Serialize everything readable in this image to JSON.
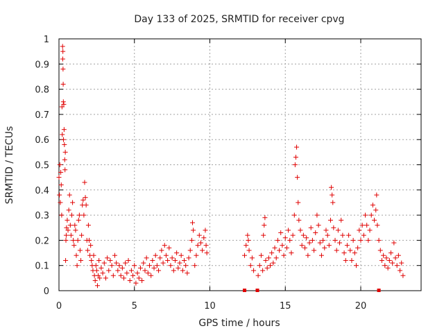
{
  "chart_data": {
    "type": "scatter",
    "title": "Day 133 of 2025, SRMTID for receiver cpvg",
    "xlabel": "GPS time / hours",
    "ylabel": "SRMTID / TECUs",
    "xlim": [
      0,
      24
    ],
    "ylim": [
      0,
      1
    ],
    "x_ticks": [
      0,
      5,
      10,
      15,
      20
    ],
    "y_ticks": [
      0,
      0.1,
      0.2,
      0.3,
      0.4,
      0.5,
      0.6,
      0.7,
      0.8,
      0.9,
      1
    ],
    "x_tick_labels": [
      "0",
      "5",
      "10",
      "15",
      "20"
    ],
    "y_tick_labels": [
      "0",
      "0.1",
      "0.2",
      "0.3",
      "0.4",
      "0.5",
      "0.6",
      "0.7",
      "0.8",
      "0.9",
      "1"
    ],
    "grid": true,
    "series_color": "#e00000",
    "gap_markers_x": [
      12.3,
      13.15,
      21.2
    ],
    "series": [
      {
        "name": "SRMTID",
        "points": [
          [
            0.0,
            0.45
          ],
          [
            0.03,
            0.38
          ],
          [
            0.06,
            0.5
          ],
          [
            0.09,
            0.35
          ],
          [
            0.12,
            0.47
          ],
          [
            0.15,
            0.42
          ],
          [
            0.18,
            0.3
          ],
          [
            0.2,
            0.73
          ],
          [
            0.22,
            0.62
          ],
          [
            0.24,
            0.97
          ],
          [
            0.25,
            0.92
          ],
          [
            0.26,
            0.95
          ],
          [
            0.27,
            0.88
          ],
          [
            0.28,
            0.82
          ],
          [
            0.29,
            0.75
          ],
          [
            0.3,
            0.6
          ],
          [
            0.32,
            0.74
          ],
          [
            0.34,
            0.64
          ],
          [
            0.36,
            0.58
          ],
          [
            0.38,
            0.52
          ],
          [
            0.4,
            0.48
          ],
          [
            0.42,
            0.55
          ],
          [
            0.44,
            0.12
          ],
          [
            0.46,
            0.2
          ],
          [
            0.48,
            0.22
          ],
          [
            0.5,
            0.25
          ],
          [
            0.55,
            0.28
          ],
          [
            0.6,
            0.24
          ],
          [
            0.65,
            0.32
          ],
          [
            0.7,
            0.38
          ],
          [
            0.75,
            0.26
          ],
          [
            0.8,
            0.22
          ],
          [
            0.85,
            0.3
          ],
          [
            0.9,
            0.35
          ],
          [
            0.95,
            0.2
          ],
          [
            1.0,
            0.18
          ],
          [
            1.05,
            0.26
          ],
          [
            1.1,
            0.24
          ],
          [
            1.15,
            0.14
          ],
          [
            1.2,
            0.1
          ],
          [
            1.25,
            0.2
          ],
          [
            1.3,
            0.28
          ],
          [
            1.35,
            0.3
          ],
          [
            1.4,
            0.16
          ],
          [
            1.45,
            0.12
          ],
          [
            1.5,
            0.22
          ],
          [
            1.55,
            0.34
          ],
          [
            1.6,
            0.36
          ],
          [
            1.65,
            0.3
          ],
          [
            1.7,
            0.43
          ],
          [
            1.75,
            0.37
          ],
          [
            1.8,
            0.34
          ],
          [
            1.85,
            0.2
          ],
          [
            1.9,
            0.16
          ],
          [
            1.95,
            0.26
          ],
          [
            2.0,
            0.2
          ],
          [
            2.05,
            0.14
          ],
          [
            2.1,
            0.18
          ],
          [
            2.15,
            0.12
          ],
          [
            2.2,
            0.1
          ],
          [
            2.25,
            0.08
          ],
          [
            2.3,
            0.14
          ],
          [
            2.35,
            0.06
          ],
          [
            2.4,
            0.04
          ],
          [
            2.45,
            0.1
          ],
          [
            2.5,
            0.08
          ],
          [
            2.55,
            0.02
          ],
          [
            2.6,
            0.06
          ],
          [
            2.65,
            0.12
          ],
          [
            2.7,
            0.05
          ],
          [
            2.8,
            0.09
          ],
          [
            2.9,
            0.07
          ],
          [
            3.0,
            0.11
          ],
          [
            3.1,
            0.05
          ],
          [
            3.2,
            0.13
          ],
          [
            3.3,
            0.08
          ],
          [
            3.4,
            0.12
          ],
          [
            3.5,
            0.1
          ],
          [
            3.6,
            0.06
          ],
          [
            3.7,
            0.14
          ],
          [
            3.8,
            0.11
          ],
          [
            3.9,
            0.08
          ],
          [
            4.0,
            0.1
          ],
          [
            4.1,
            0.06
          ],
          [
            4.2,
            0.09
          ],
          [
            4.3,
            0.05
          ],
          [
            4.4,
            0.11
          ],
          [
            4.5,
            0.07
          ],
          [
            4.6,
            0.12
          ],
          [
            4.7,
            0.04
          ],
          [
            4.8,
            0.08
          ],
          [
            4.9,
            0.06
          ],
          [
            5.0,
            0.1
          ],
          [
            5.1,
            0.03
          ],
          [
            5.2,
            0.07
          ],
          [
            5.3,
            0.05
          ],
          [
            5.4,
            0.09
          ],
          [
            5.5,
            0.04
          ],
          [
            5.6,
            0.11
          ],
          [
            5.7,
            0.08
          ],
          [
            5.8,
            0.13
          ],
          [
            5.9,
            0.07
          ],
          [
            6.0,
            0.1
          ],
          [
            6.1,
            0.06
          ],
          [
            6.2,
            0.12
          ],
          [
            6.3,
            0.09
          ],
          [
            6.4,
            0.14
          ],
          [
            6.5,
            0.1
          ],
          [
            6.6,
            0.08
          ],
          [
            6.7,
            0.13
          ],
          [
            6.8,
            0.16
          ],
          [
            6.9,
            0.11
          ],
          [
            7.0,
            0.18
          ],
          [
            7.1,
            0.14
          ],
          [
            7.2,
            0.12
          ],
          [
            7.3,
            0.17
          ],
          [
            7.4,
            0.1
          ],
          [
            7.5,
            0.13
          ],
          [
            7.6,
            0.08
          ],
          [
            7.7,
            0.12
          ],
          [
            7.8,
            0.15
          ],
          [
            7.9,
            0.09
          ],
          [
            8.0,
            0.11
          ],
          [
            8.1,
            0.14
          ],
          [
            8.2,
            0.08
          ],
          [
            8.3,
            0.12
          ],
          [
            8.4,
            0.1
          ],
          [
            8.5,
            0.07
          ],
          [
            8.6,
            0.13
          ],
          [
            8.7,
            0.16
          ],
          [
            8.8,
            0.2
          ],
          [
            8.85,
            0.27
          ],
          [
            8.9,
            0.24
          ],
          [
            9.0,
            0.1
          ],
          [
            9.1,
            0.14
          ],
          [
            9.2,
            0.18
          ],
          [
            9.3,
            0.22
          ],
          [
            9.4,
            0.19
          ],
          [
            9.5,
            0.16
          ],
          [
            9.6,
            0.21
          ],
          [
            9.7,
            0.24
          ],
          [
            9.75,
            0.18
          ],
          [
            9.8,
            0.15
          ],
          [
            12.3,
            0.14
          ],
          [
            12.4,
            0.18
          ],
          [
            12.5,
            0.22
          ],
          [
            12.55,
            0.2
          ],
          [
            12.6,
            0.16
          ],
          [
            12.7,
            0.1
          ],
          [
            12.8,
            0.13
          ],
          [
            12.9,
            0.08
          ],
          [
            13.2,
            0.06
          ],
          [
            13.3,
            0.1
          ],
          [
            13.4,
            0.14
          ],
          [
            13.5,
            0.08
          ],
          [
            13.55,
            0.22
          ],
          [
            13.6,
            0.26
          ],
          [
            13.65,
            0.29
          ],
          [
            13.7,
            0.12
          ],
          [
            13.8,
            0.09
          ],
          [
            13.9,
            0.13
          ],
          [
            14.0,
            0.1
          ],
          [
            14.1,
            0.15
          ],
          [
            14.2,
            0.11
          ],
          [
            14.3,
            0.17
          ],
          [
            14.4,
            0.13
          ],
          [
            14.5,
            0.2
          ],
          [
            14.6,
            0.16
          ],
          [
            14.7,
            0.23
          ],
          [
            14.8,
            0.18
          ],
          [
            14.9,
            0.14
          ],
          [
            15.0,
            0.21
          ],
          [
            15.1,
            0.17
          ],
          [
            15.2,
            0.24
          ],
          [
            15.3,
            0.2
          ],
          [
            15.4,
            0.15
          ],
          [
            15.5,
            0.22
          ],
          [
            15.6,
            0.3
          ],
          [
            15.65,
            0.5
          ],
          [
            15.7,
            0.53
          ],
          [
            15.75,
            0.57
          ],
          [
            15.8,
            0.45
          ],
          [
            15.85,
            0.35
          ],
          [
            15.9,
            0.28
          ],
          [
            16.0,
            0.24
          ],
          [
            16.1,
            0.18
          ],
          [
            16.2,
            0.22
          ],
          [
            16.3,
            0.17
          ],
          [
            16.4,
            0.21
          ],
          [
            16.5,
            0.14
          ],
          [
            16.6,
            0.19
          ],
          [
            16.7,
            0.25
          ],
          [
            16.8,
            0.2
          ],
          [
            16.9,
            0.16
          ],
          [
            17.0,
            0.23
          ],
          [
            17.1,
            0.3
          ],
          [
            17.2,
            0.26
          ],
          [
            17.3,
            0.19
          ],
          [
            17.4,
            0.14
          ],
          [
            17.5,
            0.2
          ],
          [
            17.6,
            0.17
          ],
          [
            17.7,
            0.24
          ],
          [
            17.8,
            0.22
          ],
          [
            17.9,
            0.18
          ],
          [
            18.0,
            0.28
          ],
          [
            18.05,
            0.41
          ],
          [
            18.1,
            0.38
          ],
          [
            18.15,
            0.35
          ],
          [
            18.2,
            0.25
          ],
          [
            18.3,
            0.2
          ],
          [
            18.4,
            0.16
          ],
          [
            18.5,
            0.24
          ],
          [
            18.6,
            0.19
          ],
          [
            18.7,
            0.28
          ],
          [
            18.8,
            0.22
          ],
          [
            18.9,
            0.15
          ],
          [
            19.0,
            0.12
          ],
          [
            19.1,
            0.18
          ],
          [
            19.2,
            0.22
          ],
          [
            19.3,
            0.16
          ],
          [
            19.4,
            0.12
          ],
          [
            19.5,
            0.2
          ],
          [
            19.6,
            0.15
          ],
          [
            19.7,
            0.1
          ],
          [
            19.8,
            0.17
          ],
          [
            19.9,
            0.24
          ],
          [
            20.0,
            0.2
          ],
          [
            20.1,
            0.26
          ],
          [
            20.2,
            0.22
          ],
          [
            20.3,
            0.3
          ],
          [
            20.4,
            0.26
          ],
          [
            20.5,
            0.2
          ],
          [
            20.6,
            0.24
          ],
          [
            20.7,
            0.3
          ],
          [
            20.8,
            0.34
          ],
          [
            20.9,
            0.28
          ],
          [
            21.0,
            0.32
          ],
          [
            21.05,
            0.38
          ],
          [
            21.1,
            0.26
          ],
          [
            21.2,
            0.2
          ],
          [
            21.3,
            0.16
          ],
          [
            21.4,
            0.12
          ],
          [
            21.5,
            0.14
          ],
          [
            21.6,
            0.1
          ],
          [
            21.7,
            0.13
          ],
          [
            21.8,
            0.09
          ],
          [
            21.9,
            0.12
          ],
          [
            22.0,
            0.15
          ],
          [
            22.1,
            0.11
          ],
          [
            22.2,
            0.19
          ],
          [
            22.3,
            0.13
          ],
          [
            22.4,
            0.1
          ],
          [
            22.5,
            0.14
          ],
          [
            22.6,
            0.08
          ],
          [
            22.7,
            0.11
          ],
          [
            22.8,
            0.06
          ]
        ]
      }
    ]
  }
}
